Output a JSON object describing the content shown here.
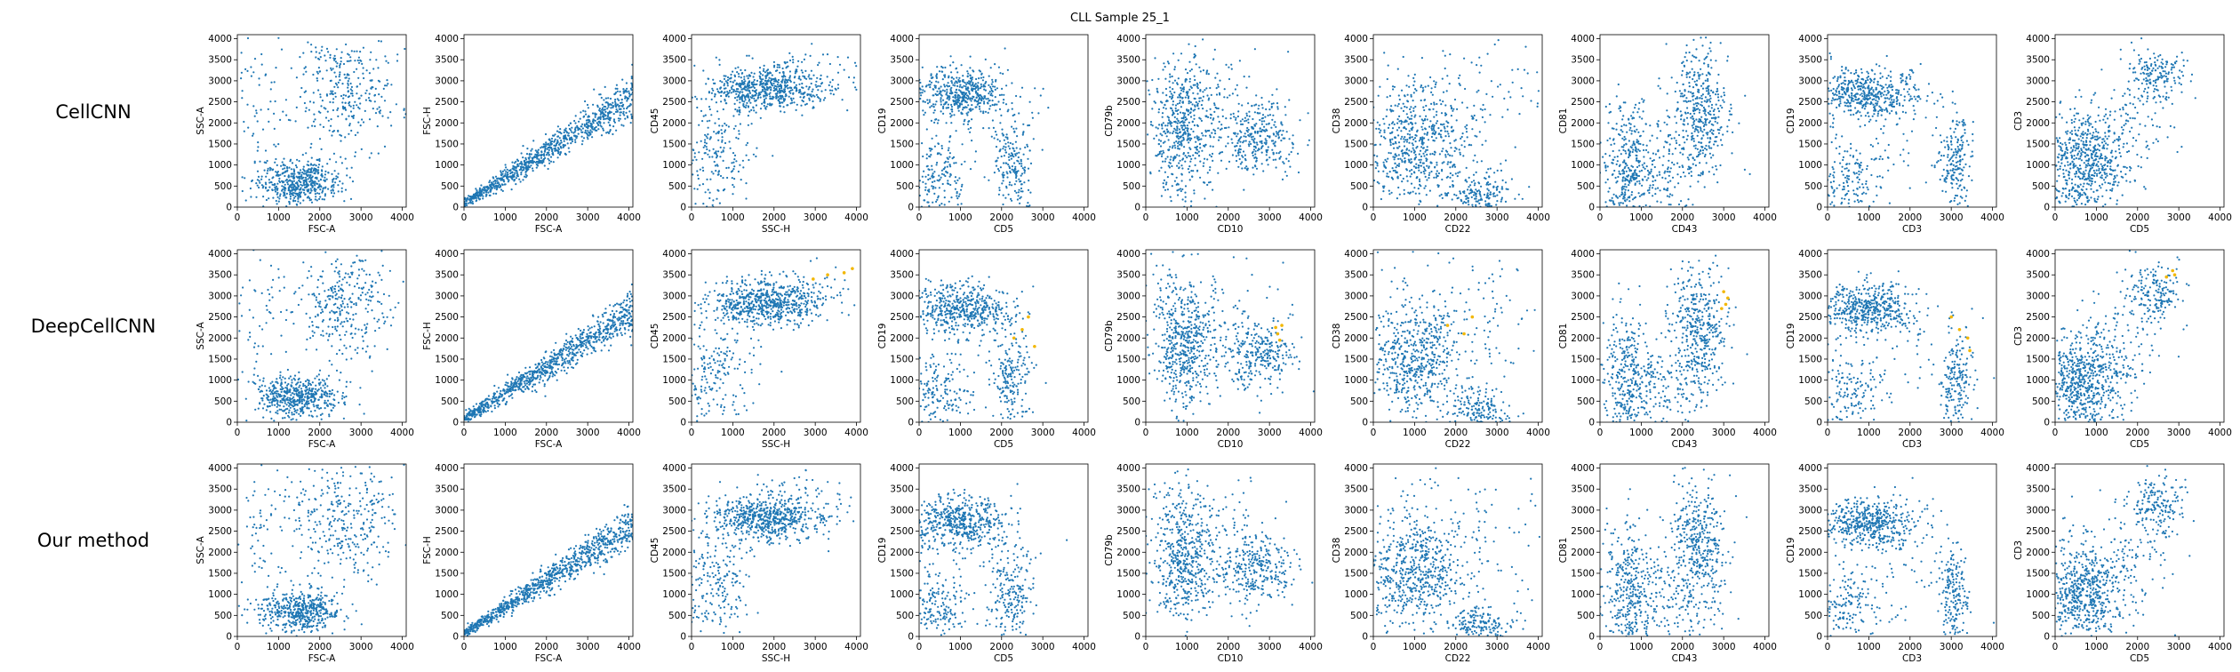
{
  "chart_data": {
    "type": "scatter",
    "title": "CLL Sample 25_1",
    "rows": [
      "CellCNN",
      "DeepCellCNN",
      "Our method"
    ],
    "colors": {
      "cells": "#1f77b4",
      "highlight": "#f2b705"
    },
    "xlim": [
      0,
      4096
    ],
    "ylim": [
      0,
      4096
    ],
    "ticks": [
      0,
      500,
      1000,
      1500,
      2000,
      2500,
      3000,
      3500,
      4000
    ],
    "xticks": [
      0,
      1000,
      2000,
      3000,
      4000
    ],
    "panels": [
      {
        "x": "FSC-A",
        "y": "SSC-A"
      },
      {
        "x": "FSC-A",
        "y": "FSC-H"
      },
      {
        "x": "SSC-H",
        "y": "CD45"
      },
      {
        "x": "CD5",
        "y": "CD19"
      },
      {
        "x": "CD10",
        "y": "CD79b"
      },
      {
        "x": "CD22",
        "y": "CD38"
      },
      {
        "x": "CD43",
        "y": "CD81"
      },
      {
        "x": "CD3",
        "y": "CD19"
      },
      {
        "x": "CD5",
        "y": "CD3"
      }
    ],
    "highlight_points_DeepCellCNN": [
      [
        [
          2950,
          3400
        ],
        [
          3300,
          3500
        ],
        [
          3700,
          3550
        ],
        [
          3900,
          3650
        ]
      ],
      [
        [
          2300,
          2000
        ],
        [
          2500,
          2200
        ],
        [
          2650,
          2500
        ],
        [
          2800,
          1800
        ]
      ],
      [
        [
          3200,
          2100
        ],
        [
          3250,
          1950
        ],
        [
          3150,
          2250
        ],
        [
          3300,
          2300
        ]
      ],
      [
        [
          1800,
          2300
        ],
        [
          2200,
          2100
        ],
        [
          2400,
          2500
        ]
      ],
      [
        [
          3050,
          2800
        ],
        [
          3100,
          2950
        ],
        [
          2950,
          2700
        ],
        [
          3000,
          3100
        ]
      ],
      [
        [
          3000,
          2500
        ],
        [
          3200,
          2200
        ],
        [
          3400,
          2000
        ],
        [
          3450,
          1700
        ]
      ],
      [
        [
          2700,
          3450
        ],
        [
          2850,
          3600
        ],
        [
          2900,
          3500
        ]
      ]
    ]
  }
}
